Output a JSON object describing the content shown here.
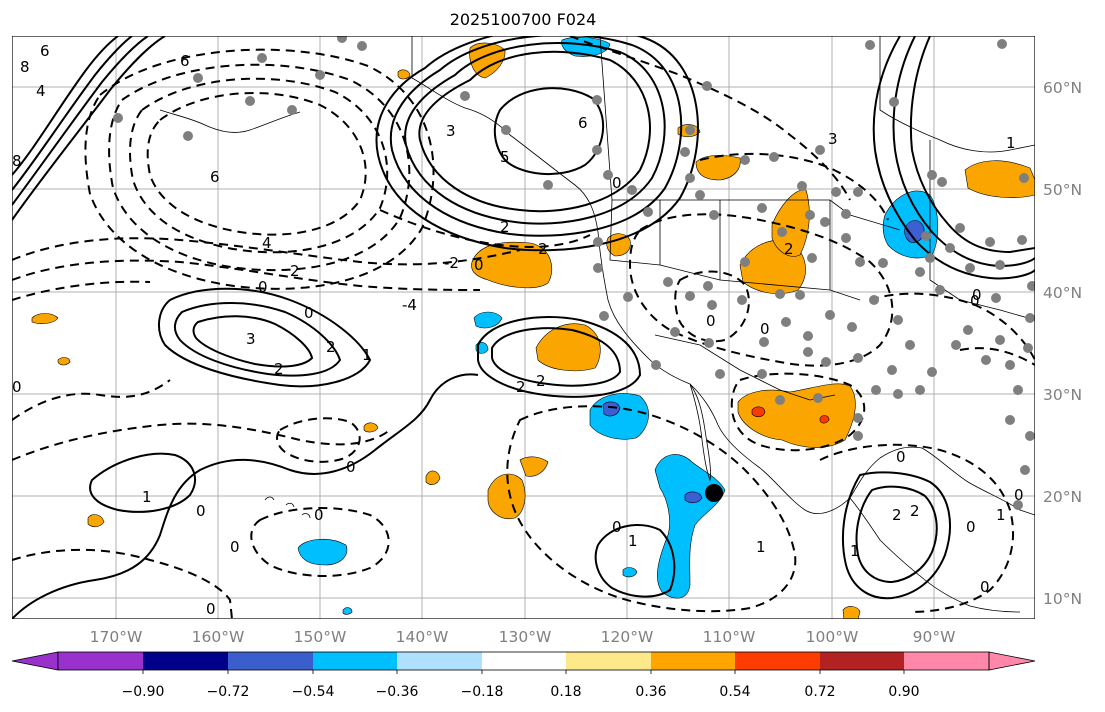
{
  "title": "2025100700 F024",
  "map": {
    "longitude_labels": [
      "170°W",
      "160°W",
      "150°W",
      "140°W",
      "130°W",
      "120°W",
      "110°W",
      "100°W",
      "90°W"
    ],
    "latitude_labels": [
      "60°N",
      "50°N",
      "40°N",
      "30°N",
      "20°N",
      "10°N"
    ],
    "contour_labels": [
      "6",
      "8",
      "6",
      "4",
      "6",
      "3",
      "5",
      "2",
      "6",
      "4",
      "3",
      "2",
      "8",
      "0",
      "2",
      "0",
      "-4",
      "2",
      "0",
      "2",
      "0",
      "-2",
      "0",
      "0",
      "3",
      "2",
      "1",
      "2",
      "2",
      "0",
      "0",
      "0",
      "1",
      "0",
      "0",
      "0",
      "1",
      "1",
      "0",
      "1",
      "2",
      "0",
      "2",
      "1",
      "0",
      "0",
      "1",
      "0",
      "0",
      "0"
    ],
    "fill_colors": {
      "pos_low": "#fde98a",
      "pos_mid": "#fba600",
      "pos_high": "#fa3a00",
      "neg_low": "#abe0ff",
      "neg_mid": "#00bfff",
      "neg_high": "#3c5fd1"
    },
    "marker_color": "#7f7f7f",
    "center_marker_color": "#000000"
  },
  "colorbar": {
    "tick_labels": [
      "−0.90",
      "−0.72",
      "−0.54",
      "−0.36",
      "−0.18",
      "0.18",
      "0.36",
      "0.54",
      "0.72",
      "0.90"
    ],
    "colors": [
      "#9932cc",
      "#00008b",
      "#3a5fcd",
      "#00bfff",
      "#b0e0ff",
      "#ffffff",
      "#fde98a",
      "#ffa500",
      "#ff3c00",
      "#b22222",
      "#ff88aa"
    ],
    "extend": "both"
  }
}
